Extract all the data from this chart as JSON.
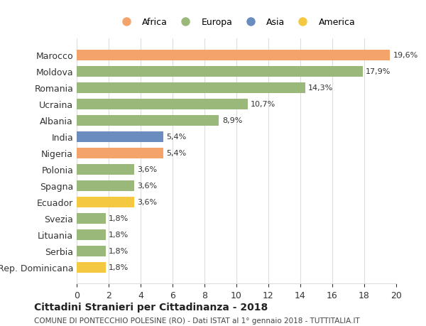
{
  "countries": [
    "Marocco",
    "Moldova",
    "Romania",
    "Ucraina",
    "Albania",
    "India",
    "Nigeria",
    "Polonia",
    "Spagna",
    "Ecuador",
    "Svezia",
    "Lituania",
    "Serbia",
    "Rep. Dominicana"
  ],
  "values": [
    19.6,
    17.9,
    14.3,
    10.7,
    8.9,
    5.4,
    5.4,
    3.6,
    3.6,
    3.6,
    1.8,
    1.8,
    1.8,
    1.8
  ],
  "labels": [
    "19,6%",
    "17,9%",
    "14,3%",
    "10,7%",
    "8,9%",
    "5,4%",
    "5,4%",
    "3,6%",
    "3,6%",
    "3,6%",
    "1,8%",
    "1,8%",
    "1,8%",
    "1,8%"
  ],
  "colors": [
    "#F4A46A",
    "#9AB87A",
    "#9AB87A",
    "#9AB87A",
    "#9AB87A",
    "#6B8CBE",
    "#F4A46A",
    "#9AB87A",
    "#9AB87A",
    "#F5C842",
    "#9AB87A",
    "#9AB87A",
    "#9AB87A",
    "#F5C842"
  ],
  "continents": [
    "Africa",
    "Europa",
    "Asia",
    "America"
  ],
  "legend_colors": [
    "#F4A46A",
    "#9AB87A",
    "#6B8CBE",
    "#F5C842"
  ],
  "title": "Cittadini Stranieri per Cittadinanza - 2018",
  "subtitle": "COMUNE DI PONTECCHIO POLESINE (RO) - Dati ISTAT al 1° gennaio 2018 - TUTTITALIA.IT",
  "xlim": [
    0,
    20
  ],
  "xticks": [
    0,
    2,
    4,
    6,
    8,
    10,
    12,
    14,
    16,
    18,
    20
  ],
  "background_color": "#ffffff",
  "grid_color": "#dddddd"
}
